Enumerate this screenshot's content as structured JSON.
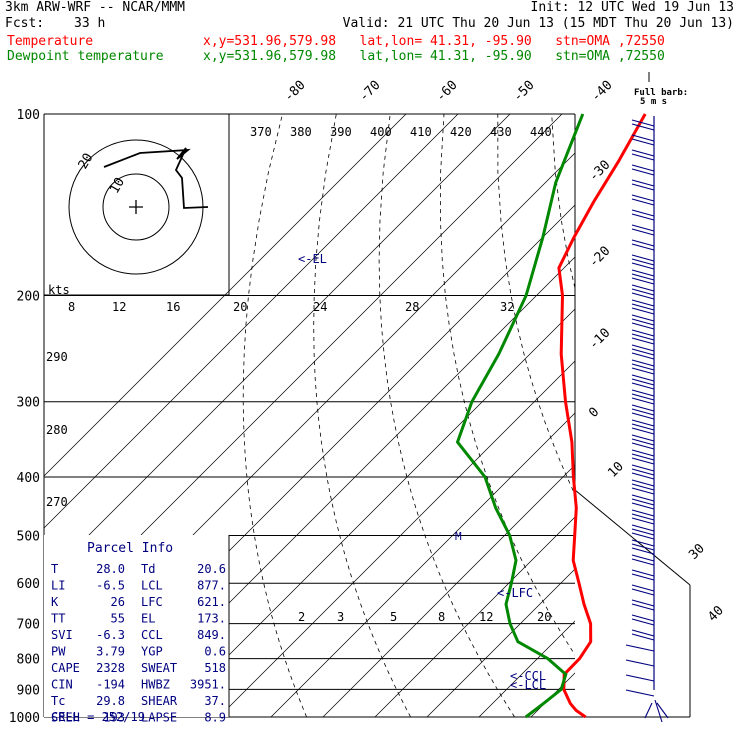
{
  "header": {
    "model": "3km ARW-WRF -- NCAR/MMM",
    "init": "Init: 12 UTC Wed 19 Jun 13",
    "fcst_label": "Fcst:",
    "fcst_value": "33 h",
    "valid": "Valid: 21 UTC Thu 20 Jun 13 (15 MDT Thu 20 Jun 13)",
    "temp_label": "Temperature",
    "dew_label": "Dewpoint temperature",
    "point_info": "x,y=531.96,579.98   lat,lon= 41.31, -95.90   stn=OMA ,72550"
  },
  "colors": {
    "temperature": "#ff0000",
    "dewpoint": "#008800",
    "text": "#000080",
    "grid": "#000000"
  },
  "chart_data": {
    "type": "line",
    "chart_type_detail": "skew-T log-p sounding",
    "y_axis": "pressure (hPa), log scale, inverted",
    "ylim": [
      100,
      1000
    ],
    "pressure_levels": [
      100,
      200,
      300,
      400,
      500,
      600,
      700,
      800,
      900,
      1000
    ],
    "pressure_labels": [
      "100",
      "200",
      "300",
      "400",
      "500",
      "600",
      "700",
      "800",
      "900",
      "1000"
    ],
    "top_isotherm_labels": [
      "-80",
      "-70",
      "-60",
      "-50",
      "-40"
    ],
    "right_isotherm_labels": [
      "-30",
      "-20",
      "-10",
      "0",
      "10",
      "30",
      "40"
    ],
    "theta_labels": [
      "370",
      "380",
      "390",
      "400",
      "410",
      "420",
      "430",
      "440"
    ],
    "mixing_ratio_labels": [
      "2",
      "3",
      "5",
      "8",
      "12",
      "20"
    ],
    "wind_speed_labels": [
      "kts",
      "8",
      "12",
      "16",
      "20",
      "24",
      "28",
      "32"
    ],
    "thetae_labels": [
      "290",
      "280",
      "270"
    ],
    "hodograph_labels": [
      "20",
      "10"
    ],
    "markers": [
      "<-EL",
      "<-LFC",
      "<-CCL",
      "<-LCL"
    ],
    "barb_key": "Full barb:",
    "barb_key_value": "5 m s",
    "series": [
      {
        "name": "Temperature",
        "points": [
          {
            "p": 1000,
            "t": 30.5
          },
          {
            "p": 975,
            "t": 27.4
          },
          {
            "p": 950,
            "t": 25
          },
          {
            "p": 900,
            "t": 21
          },
          {
            "p": 850,
            "t": 18.2
          },
          {
            "p": 800,
            "t": 18.1
          },
          {
            "p": 750,
            "t": 17
          },
          {
            "p": 700,
            "t": 13.5
          },
          {
            "p": 650,
            "t": 8.5
          },
          {
            "p": 600,
            "t": 3.5
          },
          {
            "p": 550,
            "t": -2
          },
          {
            "p": 500,
            "t": -6.5
          },
          {
            "p": 450,
            "t": -11.5
          },
          {
            "p": 400,
            "t": -18
          },
          {
            "p": 350,
            "t": -25
          },
          {
            "p": 300,
            "t": -34
          },
          {
            "p": 250,
            "t": -44
          },
          {
            "p": 200,
            "t": -55
          },
          {
            "p": 180,
            "t": -61
          },
          {
            "p": 160,
            "t": -64
          },
          {
            "p": 140,
            "t": -67
          },
          {
            "p": 120,
            "t": -70
          },
          {
            "p": 100,
            "t": -74
          }
        ]
      },
      {
        "name": "Dewpoint temperature",
        "points": [
          {
            "p": 1000,
            "t": 19
          },
          {
            "p": 950,
            "t": 19.8
          },
          {
            "p": 900,
            "t": 20.5
          },
          {
            "p": 850,
            "t": 18.5
          },
          {
            "p": 800,
            "t": 12
          },
          {
            "p": 750,
            "t": 3
          },
          {
            "p": 700,
            "t": -2
          },
          {
            "p": 650,
            "t": -6.5
          },
          {
            "p": 600,
            "t": -9.5
          },
          {
            "p": 550,
            "t": -13
          },
          {
            "p": 500,
            "t": -19
          },
          {
            "p": 450,
            "t": -27
          },
          {
            "p": 400,
            "t": -35
          },
          {
            "p": 350,
            "t": -47
          },
          {
            "p": 300,
            "t": -52
          },
          {
            "p": 250,
            "t": -56
          },
          {
            "p": 200,
            "t": -62
          },
          {
            "p": 160,
            "t": -70
          },
          {
            "p": 130,
            "t": -78
          },
          {
            "p": 100,
            "t": -86
          }
        ]
      }
    ],
    "hodograph_trace": [
      [
        0,
        0
      ]
    ],
    "parcel_info": {
      "title": "Parcel Info",
      "rows": [
        {
          "l": "T",
          "lv": "28.0",
          "r": "Td",
          "rv": "20.6"
        },
        {
          "l": "LI",
          "lv": "-6.5",
          "r": "LCL",
          "rv": "877."
        },
        {
          "l": "K",
          "lv": "26",
          "r": "LFC",
          "rv": "621."
        },
        {
          "l": "TT",
          "lv": "55",
          "r": "EL",
          "rv": "173."
        },
        {
          "l": "SVI",
          "lv": "-6.3",
          "r": "CCL",
          "rv": "849."
        },
        {
          "l": "PW",
          "lv": "3.79",
          "r": "YGP",
          "rv": "0.6"
        },
        {
          "l": "CAPE",
          "lv": "2328",
          "r": "SWEAT",
          "rv": "518"
        },
        {
          "l": "CIN",
          "lv": "-194",
          "r": "HWBZ",
          "rv": "3951."
        },
        {
          "l": "Tc",
          "lv": "29.8",
          "r": "SHEAR",
          "rv": "37."
        },
        {
          "l": "SREH",
          "lv": "193",
          "r": "LAPSE",
          "rv": "8.9"
        }
      ],
      "cell": "CELL = 252/19"
    }
  }
}
